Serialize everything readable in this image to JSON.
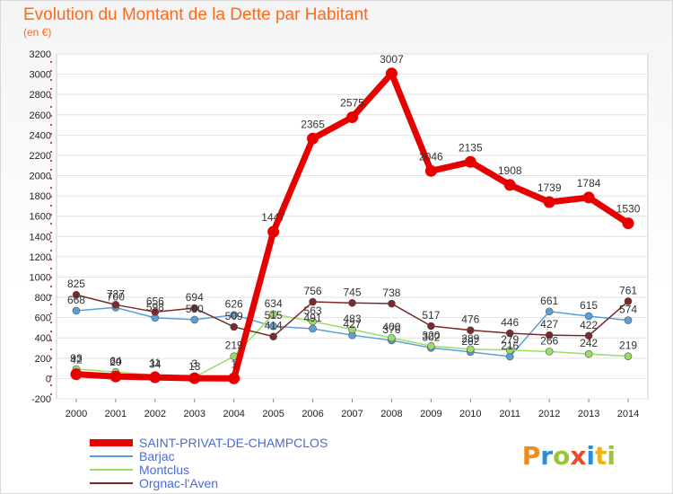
{
  "chart_data": {
    "type": "line",
    "title": "Evolution du Montant de la Dette par Habitant",
    "subtitle": "(en €)",
    "xlabel": "",
    "ylabel": "",
    "x": [
      "2000",
      "2001",
      "2002",
      "2003",
      "2004",
      "2005",
      "2006",
      "2007",
      "2008",
      "2009",
      "2010",
      "2011",
      "2012",
      "2013",
      "2014"
    ],
    "ylim": [
      -200,
      3200
    ],
    "yticks": [
      -200,
      0,
      200,
      400,
      600,
      800,
      1000,
      1200,
      1400,
      1600,
      1800,
      2000,
      2200,
      2400,
      2600,
      2800,
      3000,
      3200
    ],
    "grid": "horizontal",
    "legend_position": "bottom-left",
    "series": [
      {
        "name": "SAINT-PRIVAT-DE-CHAMPCLOS",
        "color": "#e60000",
        "values": [
          42,
          20,
          11,
          3,
          1,
          1447,
          2365,
          2575,
          3007,
          2046,
          2135,
          1908,
          1739,
          1784,
          1530
        ],
        "labels": [
          "42",
          "20",
          "11",
          "3",
          "1",
          "1447",
          "2365",
          "2575",
          "3007",
          "2046",
          "2135",
          "1908",
          "1739",
          "1784",
          "1530"
        ]
      },
      {
        "name": "Barjac",
        "color": "#5aa0d8",
        "values": [
          668,
          700,
          598,
          580,
          626,
          515,
          491,
          427,
          376,
          302,
          262,
          216,
          661,
          615,
          574
        ],
        "labels": [
          "668",
          "700",
          "598",
          "580",
          "626",
          "515",
          "491",
          "427",
          "376",
          "302",
          "262",
          "216",
          "661",
          "615",
          "574"
        ]
      },
      {
        "name": "Montclus",
        "color": "#99dd66",
        "values": [
          93,
          64,
          34,
          13,
          219,
          634,
          563,
          483,
          400,
          320,
          289,
          279,
          266,
          242,
          219
        ],
        "labels": [
          "93",
          "64",
          "34",
          "13",
          "219",
          "634",
          "563",
          "483",
          "400",
          "320",
          "289",
          "279",
          "266",
          "242",
          "219"
        ]
      },
      {
        "name": "Orgnac-l'Aven",
        "color": "#7a2a2a",
        "values": [
          825,
          727,
          656,
          694,
          509,
          414,
          756,
          745,
          738,
          517,
          476,
          446,
          427,
          422,
          761
        ],
        "labels": [
          "825",
          "727",
          "656",
          "694",
          "509",
          "414",
          "756",
          "745",
          "738",
          "517",
          "476",
          "446",
          "427",
          "422",
          "761"
        ]
      }
    ]
  },
  "logo": {
    "text": "Proxiti"
  }
}
